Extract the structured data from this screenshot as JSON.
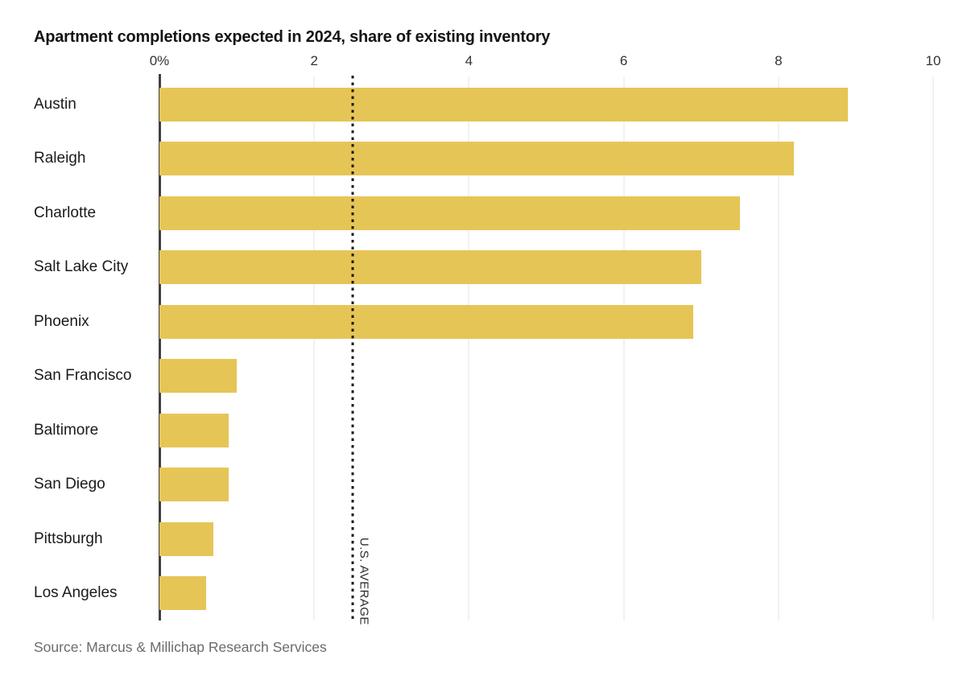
{
  "title": "Apartment completions expected in 2024, share of existing inventory",
  "source": "Source: Marcus & Millichap Research Services",
  "chart_data": {
    "type": "bar",
    "orientation": "horizontal",
    "title": "Apartment completions expected in 2024, share of existing inventory",
    "categories": [
      "Austin",
      "Raleigh",
      "Charlotte",
      "Salt Lake City",
      "Phoenix",
      "San Francisco",
      "Baltimore",
      "San Diego",
      "Pittsburgh",
      "Los Angeles"
    ],
    "values": [
      8.9,
      8.2,
      7.5,
      7.0,
      6.9,
      1.0,
      0.9,
      0.9,
      0.7,
      0.6
    ],
    "xlim": [
      0,
      10
    ],
    "xticks": [
      0,
      2,
      4,
      6,
      8,
      10
    ],
    "xtick_labels": [
      "0%",
      "2",
      "4",
      "6",
      "8",
      "10"
    ],
    "reference_line": {
      "value": 2.5,
      "label": "U.S. AVERAGE"
    },
    "grid": true,
    "legend": "none",
    "colors": {
      "bar": "#e6c557",
      "axis_line": "#404040",
      "gridline": "#e4e4e4",
      "reference_line": "#1a1a1a",
      "title_text": "#141414",
      "label_text": "#1a1a1a",
      "tick_text": "#333333",
      "source_text": "#6b6b6b"
    }
  }
}
